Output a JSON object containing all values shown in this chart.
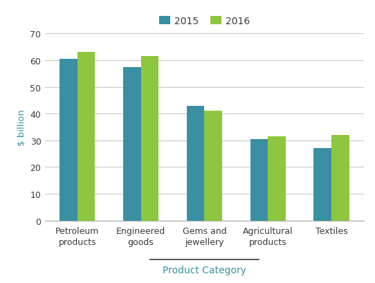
{
  "categories": [
    "Petroleum\nproducts",
    "Engineered\ngoods",
    "Gems and\njewellery",
    "Agricultural\nproducts",
    "Textiles"
  ],
  "values_2015": [
    60.5,
    57.5,
    43.0,
    30.5,
    27.0
  ],
  "values_2016": [
    63.0,
    61.5,
    41.0,
    31.5,
    32.0
  ],
  "color_2015": "#3a8fa3",
  "color_2016": "#8dc63f",
  "legend_labels": [
    "2015",
    "2016"
  ],
  "ylabel": "$ billion",
  "xlabel": "Product Category",
  "ylim": [
    0,
    70
  ],
  "yticks": [
    0,
    10,
    20,
    30,
    40,
    50,
    60,
    70
  ],
  "bar_width": 0.28,
  "axis_label_color": "#3a8fa3",
  "tick_label_color": "#3a3a3a",
  "grid_color": "#c8c8c8",
  "xlabel_line_color": "#333333",
  "legend_text_color": "#3a3a3a",
  "spine_color": "#aaaaaa"
}
